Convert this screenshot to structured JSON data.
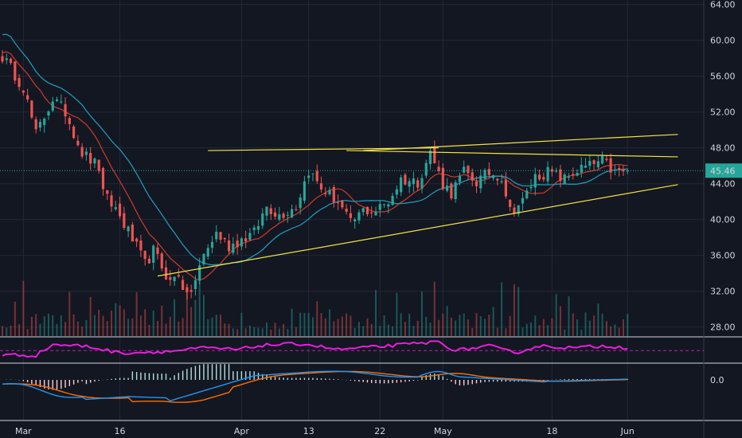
{
  "chart_data": {
    "type": "candlestick",
    "price_axis": {
      "ylim": [
        27,
        64.5
      ],
      "ticks": [
        "64.00",
        "60.00",
        "56.00",
        "52.00",
        "48.00",
        "44.00",
        "40.00",
        "36.00",
        "32.00",
        "28.00"
      ],
      "tick_values": [
        64,
        60,
        56,
        52,
        48,
        44,
        40,
        36,
        32,
        28
      ],
      "grid": true
    },
    "last_price": {
      "label": "45.46",
      "value": 45.46,
      "color": "#26a69a"
    },
    "time_axis": {
      "labels": [
        "Mar",
        "16",
        "Apr",
        "13",
        "22",
        "May",
        "18",
        "Jun"
      ],
      "label_index": [
        5,
        28,
        57,
        73,
        90,
        105,
        131,
        149
      ]
    },
    "candles": {
      "count": 150,
      "close_anchors": [
        [
          0,
          58.2
        ],
        [
          5,
          54.8
        ],
        [
          8,
          49.5
        ],
        [
          12,
          53.5
        ],
        [
          15,
          52.0
        ],
        [
          19,
          47.5
        ],
        [
          23,
          45.8
        ],
        [
          24,
          42.8
        ],
        [
          27,
          41.2
        ],
        [
          31,
          37.8
        ],
        [
          34,
          35.0
        ],
        [
          36,
          36.5
        ],
        [
          40,
          33.0
        ],
        [
          42,
          34.0
        ],
        [
          44,
          31.2
        ],
        [
          46,
          33.2
        ],
        [
          48,
          36.0
        ],
        [
          51,
          38.5
        ],
        [
          54,
          37.0
        ],
        [
          57,
          37.8
        ],
        [
          60,
          38.5
        ],
        [
          63,
          41.5
        ],
        [
          66,
          40.5
        ],
        [
          70,
          41.5
        ],
        [
          73,
          45.5
        ],
        [
          76,
          43.5
        ],
        [
          80,
          42.0
        ],
        [
          83,
          39.5
        ],
        [
          86,
          41.0
        ],
        [
          89,
          41.0
        ],
        [
          92,
          42.0
        ],
        [
          95,
          44.5
        ],
        [
          99,
          44.2
        ],
        [
          102,
          47.5
        ],
        [
          105,
          44.0
        ],
        [
          107,
          43.0
        ],
        [
          110,
          45.3
        ],
        [
          113,
          44.2
        ],
        [
          116,
          45.2
        ],
        [
          119,
          44.8
        ],
        [
          121,
          41.0
        ],
        [
          124,
          42.0
        ],
        [
          127,
          44.8
        ],
        [
          130,
          45.3
        ],
        [
          134,
          44.5
        ],
        [
          137,
          45.5
        ],
        [
          140,
          46.0
        ],
        [
          143,
          46.5
        ],
        [
          146,
          45.2
        ],
        [
          149,
          45.46
        ]
      ],
      "up_color": "#26a69a",
      "down_color": "#ef5350"
    },
    "moving_averages": [
      {
        "color": "#c0392b",
        "period": 10
      },
      {
        "color": "#2196b3",
        "period": 20
      }
    ],
    "trendlines": [
      {
        "color": "#f5e342",
        "from": [
          37,
          33.7
        ],
        "to": [
          161,
          43.9
        ]
      },
      {
        "color": "#f5e342",
        "from": [
          49,
          47.7
        ],
        "to": [
          104,
          48.0
        ]
      },
      {
        "color": "#f5e342",
        "from": [
          86,
          47.7
        ],
        "to": [
          161,
          49.5
        ]
      },
      {
        "color": "#f5e342",
        "from": [
          82,
          47.7
        ],
        "to": [
          161,
          47.0
        ]
      }
    ],
    "volume": {
      "up_color": "#26a69a",
      "down_color": "#ef5350"
    },
    "rsi": {
      "color": "#e91edc",
      "reference_color": "#e91edc",
      "anchors": [
        [
          0,
          40
        ],
        [
          8,
          38
        ],
        [
          12,
          70
        ],
        [
          20,
          65
        ],
        [
          28,
          45
        ],
        [
          40,
          50
        ],
        [
          48,
          60
        ],
        [
          56,
          55
        ],
        [
          62,
          68
        ],
        [
          72,
          72
        ],
        [
          80,
          55
        ],
        [
          88,
          62
        ],
        [
          96,
          70
        ],
        [
          104,
          78
        ],
        [
          108,
          52
        ],
        [
          116,
          66
        ],
        [
          122,
          45
        ],
        [
          128,
          66
        ],
        [
          136,
          60
        ],
        [
          144,
          66
        ],
        [
          149,
          60
        ]
      ]
    },
    "macd": {
      "zero_label": "0.0",
      "macd_color": "#2196f3",
      "signal_color": "#ff6d00",
      "hist_up_color": "#b2dfdb",
      "hist_down_color": "#ffcdd2"
    }
  }
}
